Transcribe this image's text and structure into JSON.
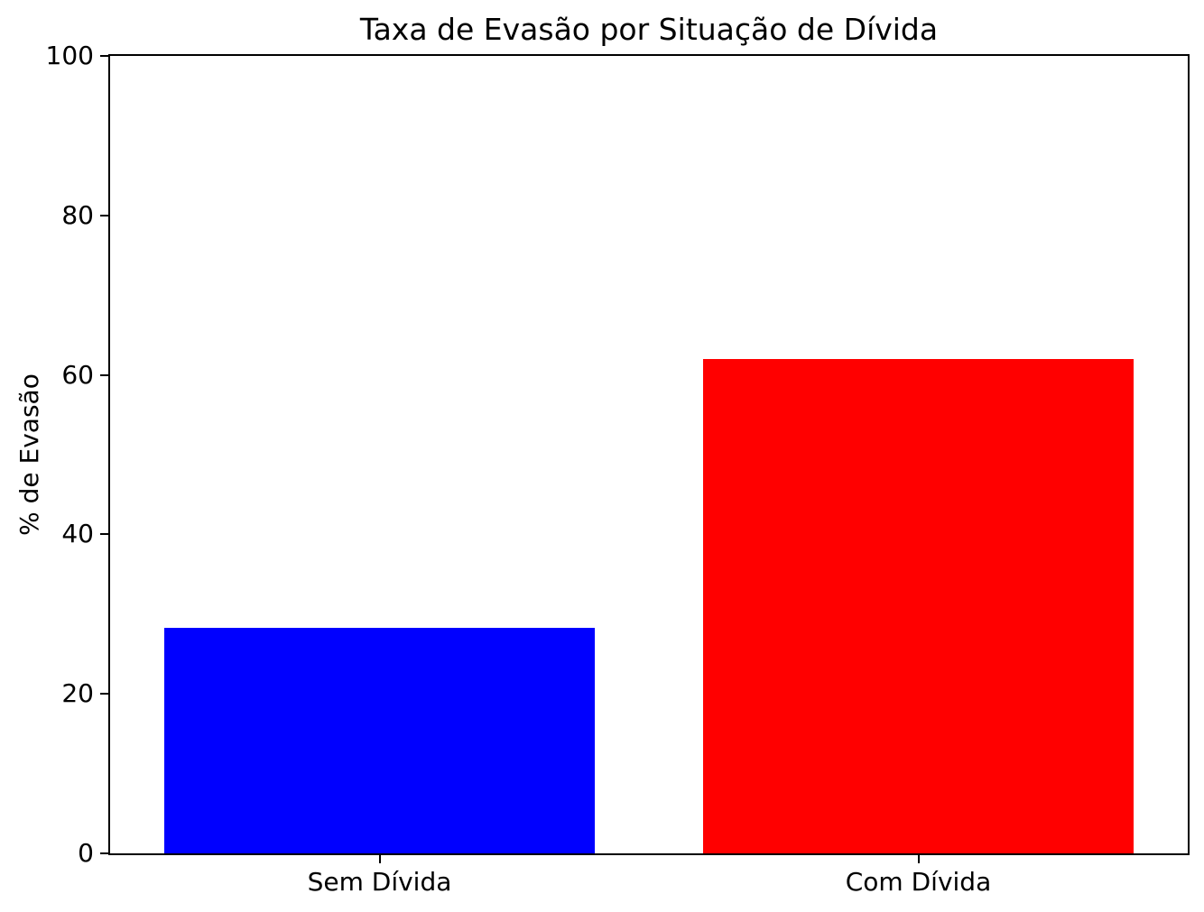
{
  "chart_data": {
    "type": "bar",
    "title": "Taxa de Evasão por Situação de Dívida",
    "ylabel": "% de Evasão",
    "xlabel": "",
    "categories": [
      "Sem Dívida",
      "Com Dívida"
    ],
    "values": [
      28.3,
      62
    ],
    "bar_colors": [
      "#0000ff",
      "#ff0000"
    ],
    "ylim": [
      0,
      100
    ],
    "yticks": [
      0,
      20,
      40,
      60,
      80,
      100
    ],
    "grid": false,
    "legend": false,
    "background_color": "#ffffff",
    "axis_color": "#000000"
  }
}
